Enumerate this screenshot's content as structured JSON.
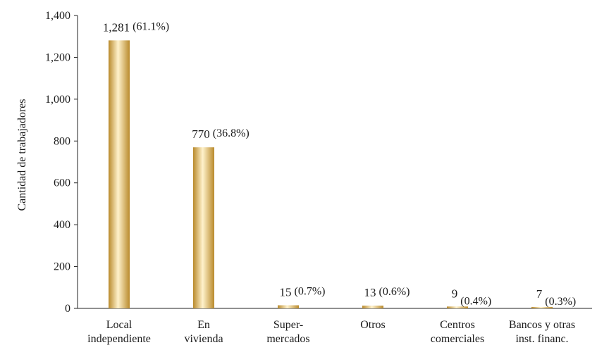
{
  "chart_data": {
    "type": "bar",
    "ylabel": "Cantidad de trabajadores",
    "xlabel": "",
    "ylim": [
      0,
      1400
    ],
    "yticks": [
      0,
      200,
      400,
      600,
      800,
      1000,
      1200,
      1400
    ],
    "ytick_labels": [
      "0",
      "200",
      "400",
      "600",
      "800",
      "1,000",
      "1,200",
      "1,400"
    ],
    "grid": false,
    "legend": "none",
    "bar_color": "#d4a84a",
    "categories": [
      [
        "Local",
        "independiente"
      ],
      [
        "En",
        "vivienda"
      ],
      [
        "Super-",
        "mercados"
      ],
      [
        "Otros"
      ],
      [
        "Centros",
        "comerciales"
      ],
      [
        "Bancos y otras",
        "inst. financ."
      ]
    ],
    "values": [
      1281,
      770,
      15,
      13,
      9,
      7
    ],
    "value_labels": [
      "1,281",
      "770",
      "15",
      "13",
      "9",
      "7"
    ],
    "percent_labels": [
      "(61.1%)",
      "(36.8%)",
      "(0.7%)",
      "(0.6%)",
      "(0.4%)",
      "(0.3%)"
    ]
  }
}
